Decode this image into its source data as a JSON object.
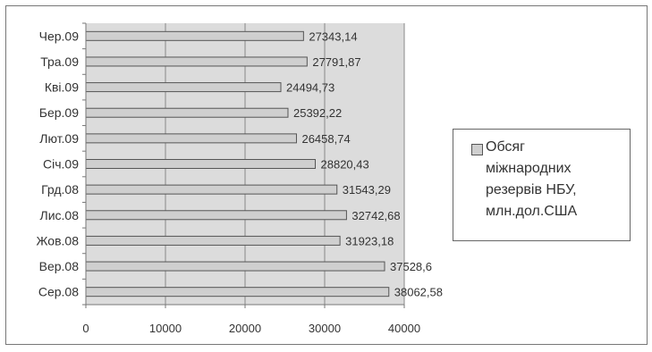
{
  "chart_data": {
    "type": "bar",
    "orientation": "horizontal",
    "categories": [
      "Сер.08",
      "Вер.08",
      "Жов.08",
      "Лис.08",
      "Грд.08",
      "Січ.09",
      "Лют.09",
      "Бер.09",
      "Квi.09",
      "Тра.09",
      "Чер.09"
    ],
    "value_labels": [
      "38062,58",
      "37528,6",
      "31923,18",
      "32742,68",
      "31543,29",
      "28820,43",
      "26458,74",
      "25392,22",
      "24494,73",
      "27791,87",
      "27343,14"
    ],
    "series": [
      {
        "name": "Обсяг міжнародних резервів НБУ, млн.дол.США",
        "values": [
          38062.58,
          37528.6,
          31923.18,
          32742.68,
          31543.29,
          28820.43,
          26458.74,
          25392.22,
          24494.73,
          27791.87,
          27343.14
        ]
      }
    ],
    "x_ticks": [
      "0",
      "10000",
      "20000",
      "30000",
      "40000"
    ],
    "xlim": [
      0,
      40000
    ],
    "grid": true,
    "legend_position": "right",
    "colors": {
      "bar_fill": "#cfcfcf",
      "bar_stroke": "#555555",
      "plot_bg": "#dcdcdc",
      "gridline": "#888888"
    }
  },
  "legend": {
    "lines": [
      "Обсяг",
      "міжнародних",
      "резервів НБУ,",
      "млн.дол.США"
    ]
  }
}
